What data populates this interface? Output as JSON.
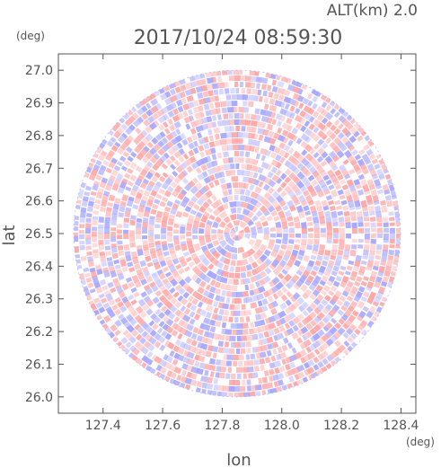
{
  "header": {
    "altitude_label": "ALT(km) 2.0",
    "timestamp": "2017/10/24 08:59:30"
  },
  "chart_data": {
    "type": "heatmap",
    "title": "2017/10/24 08:59:30",
    "subtitle": "ALT(km) 2.0",
    "xlabel": "lon",
    "ylabel": "lat",
    "x_unit": "(deg)",
    "y_unit": "(deg)",
    "xlim": [
      127.25,
      128.45
    ],
    "ylim": [
      25.95,
      27.05
    ],
    "x_ticks": [
      127.4,
      127.6,
      127.8,
      128.0,
      128.2,
      128.4
    ],
    "x_tick_labels": [
      "127.4",
      "127.6",
      "127.8",
      "128.0",
      "128.2",
      "128.4"
    ],
    "y_ticks": [
      26.0,
      26.1,
      26.2,
      26.3,
      26.4,
      26.5,
      26.6,
      26.7,
      26.8,
      26.9,
      27.0
    ],
    "y_tick_labels": [
      "26.0",
      "26.1",
      "26.2",
      "26.3",
      "26.4",
      "26.5",
      "26.6",
      "26.7",
      "26.8",
      "26.9",
      "27.0"
    ],
    "radar_center": [
      127.85,
      26.5
    ],
    "radar_range_deg_lat": 0.5,
    "colors": {
      "positive": "#ff9e9e",
      "negative": "#9e9eff",
      "neutral": "#ffffff",
      "axis": "#555555"
    },
    "grid": false,
    "legend": "none"
  }
}
